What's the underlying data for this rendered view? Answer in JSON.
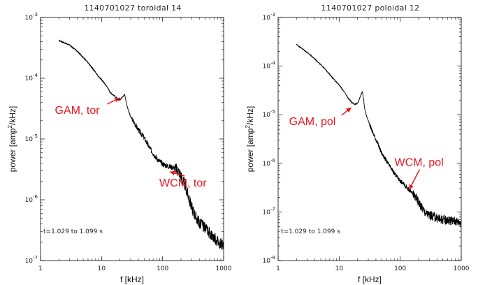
{
  "colors": {
    "line": "#000000",
    "annotation": "#e8141b",
    "axis": "#000000"
  },
  "chart_data": [
    {
      "type": "line",
      "title": "1140701027 toroidal 14",
      "xlabel": "f [kHz]",
      "ylabel": "power [amp",
      "ylabel_sup": "2",
      "ylabel_tail": "/kHz]",
      "xscale": "log",
      "yscale": "log",
      "xlim": [
        1,
        1000
      ],
      "ylim": [
        1e-07,
        0.001
      ],
      "xticks": [
        {
          "v": 1,
          "label": "1"
        },
        {
          "v": 10,
          "label": "10"
        },
        {
          "v": 100,
          "label": "100"
        },
        {
          "v": 1000,
          "label": "1000"
        }
      ],
      "yticks": [
        {
          "v": 1e-07,
          "base": "10",
          "exp": "-7"
        },
        {
          "v": 1e-06,
          "base": "10",
          "exp": "-6"
        },
        {
          "v": 1e-05,
          "base": "10",
          "exp": "-5"
        },
        {
          "v": 0.0001,
          "base": "10",
          "exp": "-4"
        },
        {
          "v": 0.001,
          "base": "10",
          "exp": "-3"
        }
      ],
      "series": [
        {
          "x": [
            2,
            3,
            4,
            6,
            8,
            9,
            10,
            12,
            14,
            16,
            18,
            20,
            22,
            24,
            25,
            26,
            28,
            30,
            35,
            40,
            50,
            60,
            70,
            80,
            100,
            120,
            150,
            180,
            200,
            230,
            260,
            300,
            350,
            400,
            450,
            500,
            600,
            700,
            800,
            900,
            1000
          ],
          "y": [
            0.00042,
            0.00035,
            0.00028,
            0.00018,
            0.000125,
            0.000105,
            9.5e-05,
            7.5e-05,
            5.8e-05,
            5.2e-05,
            4.6e-05,
            4.4e-05,
            5e-05,
            5.4e-05,
            4.3e-05,
            3.6e-05,
            2.8e-05,
            2.3e-05,
            1.8e-05,
            1.4e-05,
            1.05e-05,
            7.4e-06,
            5.8e-06,
            4.8e-06,
            3.9e-06,
            3.6e-06,
            3.4e-06,
            3e-06,
            2.5e-06,
            1.8e-06,
            1.2e-06,
            7.5e-07,
            5.2e-07,
            4.2e-07,
            3.8e-07,
            3.3e-07,
            2.8e-07,
            2.4e-07,
            2.1e-07,
            1.9e-07,
            1.7e-07
          ]
        }
      ],
      "annotations": [
        {
          "text": "GAM, tor",
          "x": 24,
          "y": 5.3e-05
        },
        {
          "text": "WCM, tor",
          "x": 150,
          "y": 3.3e-06
        }
      ],
      "note": "t=1.029 to 1.099 s",
      "grid": false
    },
    {
      "type": "line",
      "title": "1140701027 poloidal 12",
      "xlabel": "f [kHz]",
      "ylabel": "power [amp",
      "ylabel_sup": "2",
      "ylabel_tail": "/kHz]",
      "xscale": "log",
      "yscale": "log",
      "xlim": [
        1,
        1000
      ],
      "ylim": [
        1e-08,
        0.001
      ],
      "xticks": [
        {
          "v": 1,
          "label": "1"
        },
        {
          "v": 10,
          "label": "10"
        },
        {
          "v": 100,
          "label": "100"
        },
        {
          "v": 1000,
          "label": "1000"
        }
      ],
      "yticks": [
        {
          "v": 1e-08,
          "base": "10",
          "exp": "-8"
        },
        {
          "v": 1e-07,
          "base": "10",
          "exp": "-7"
        },
        {
          "v": 1e-06,
          "base": "10",
          "exp": "-6"
        },
        {
          "v": 1e-05,
          "base": "10",
          "exp": "-5"
        },
        {
          "v": 0.0001,
          "base": "10",
          "exp": "-4"
        },
        {
          "v": 0.001,
          "base": "10",
          "exp": "-3"
        }
      ],
      "series": [
        {
          "x": [
            2,
            3,
            4,
            6,
            8,
            10,
            12,
            14,
            16,
            18,
            20,
            22,
            24,
            25,
            26,
            28,
            30,
            35,
            40,
            50,
            60,
            70,
            80,
            100,
            120,
            150,
            180,
            200,
            230,
            260,
            300,
            350,
            400,
            450,
            500,
            600,
            700,
            800,
            900,
            1000
          ],
          "y": [
            0.00028,
            0.00019,
            0.00014,
            8.5e-05,
            5.5e-05,
            4.1e-05,
            3e-05,
            2.2e-05,
            1.8e-05,
            1.65e-05,
            1.7e-05,
            2.3e-05,
            3e-05,
            2.2e-05,
            1.4e-05,
            9.5e-06,
            7.5e-06,
            4.5e-06,
            3.1e-06,
            1.6e-06,
            1.1e-06,
            8e-07,
            6.2e-07,
            4.4e-07,
            3.5e-07,
            2.6e-07,
            2e-07,
            1.6e-07,
            1.2e-07,
            9.5e-08,
            8.5e-08,
            8e-08,
            7.5e-08,
            7.2e-08,
            7e-08,
            6.8e-08,
            6.6e-08,
            6.5e-08,
            6.3e-08,
            6.2e-08
          ]
        }
      ],
      "annotations": [
        {
          "text": "GAM, pol",
          "x": 19,
          "y": 1.65e-05
        },
        {
          "text": "WCM, pol",
          "x": 160,
          "y": 3.5e-07
        }
      ],
      "note": "t=1.029 to 1.099 s",
      "grid": false
    }
  ]
}
